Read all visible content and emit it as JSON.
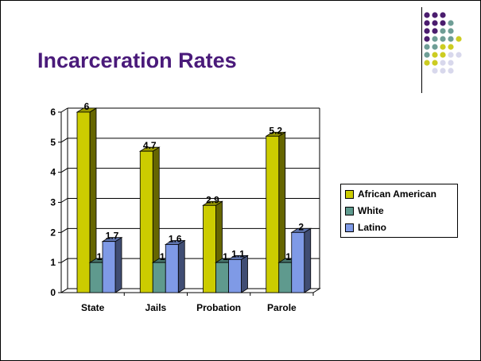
{
  "slide": {
    "title": "Incarceration Rates"
  },
  "colors": {
    "title": "#4a1a7a",
    "african_american": "#cccc00",
    "white": "#5f9a8e",
    "latino": "#7f9ae6",
    "dot_purple": "#4b1d6e",
    "dot_teal": "#6f9e96",
    "dot_yellow": "#cccc22",
    "dot_lavender": "#d8d8ec"
  },
  "chart_data": {
    "type": "bar",
    "title": "",
    "xlabel": "",
    "ylabel": "",
    "categories": [
      "State",
      "Jails",
      "Probation",
      "Parole"
    ],
    "series": [
      {
        "name": "African American",
        "values": [
          6,
          4.7,
          2.9,
          5.2
        ],
        "labels": [
          "6",
          "4.7",
          "2.9",
          "5.2"
        ]
      },
      {
        "name": "White",
        "values": [
          1,
          1,
          1,
          1
        ],
        "labels": [
          "1",
          "1",
          "1",
          "1"
        ]
      },
      {
        "name": "Latino",
        "values": [
          1.7,
          1.6,
          1.1,
          2
        ],
        "labels": [
          "1.7",
          "1.6",
          "1.1",
          "2"
        ]
      }
    ],
    "ylim": [
      0,
      6
    ],
    "yticks": [
      "0",
      "1",
      "2",
      "3",
      "4",
      "5",
      "6"
    ],
    "grid": true,
    "three_d": true,
    "legend_position": "right"
  }
}
